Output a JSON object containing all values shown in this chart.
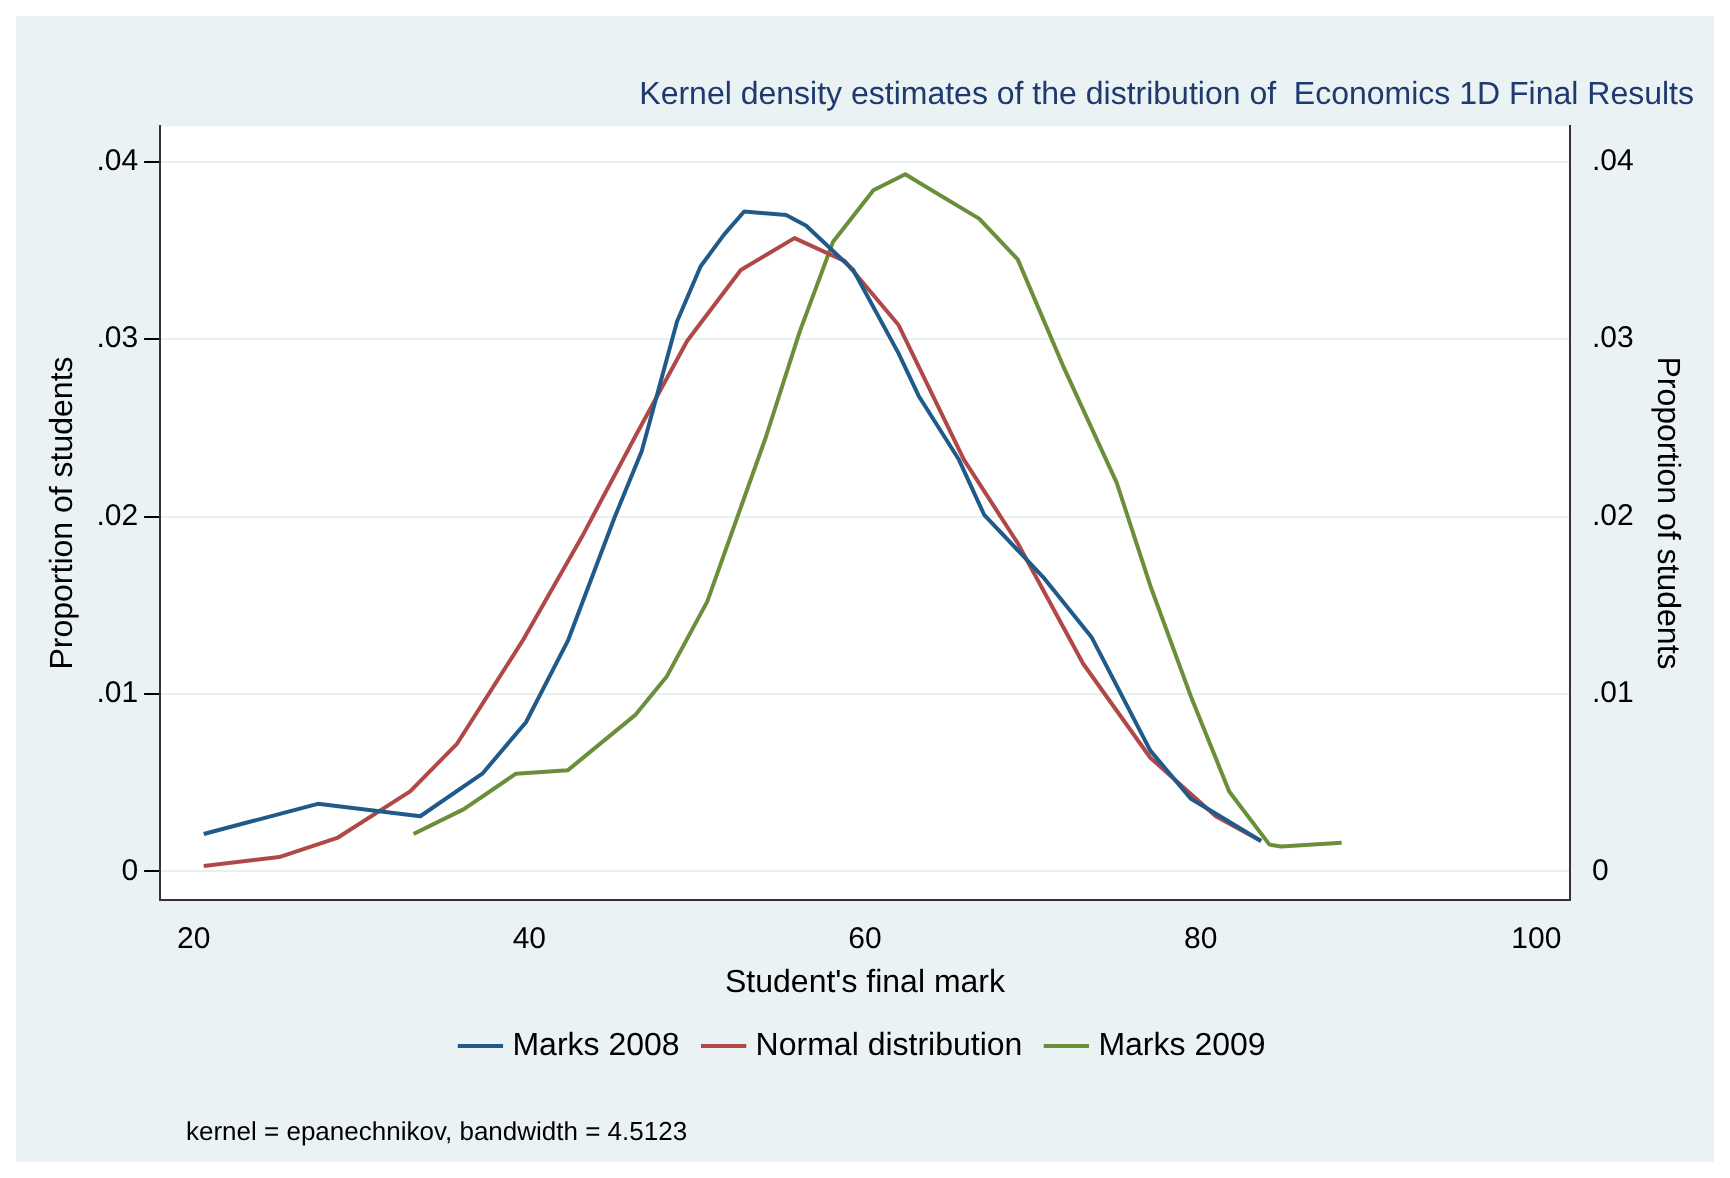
{
  "chart_data": {
    "type": "line",
    "title": "Kernel density estimates of the distribution of  Economics 1D Final Results",
    "xlabel": "Student's final mark",
    "ylabel": "Proportion of students",
    "y2label": "Proportion of students",
    "xlim": [
      18,
      102
    ],
    "xticks": [
      20,
      40,
      60,
      80,
      100
    ],
    "ylim": [
      -0.0016,
      0.042
    ],
    "yticks": [
      {
        "value": 0,
        "label": "0"
      },
      {
        "value": 0.01,
        "label": ".01"
      },
      {
        "value": 0.02,
        "label": ".02"
      },
      {
        "value": 0.03,
        "label": ".03"
      },
      {
        "value": 0.04,
        "label": ".04"
      }
    ],
    "y2lim": [
      -0.0016,
      0.042
    ],
    "y2ticks": [
      {
        "value": 0,
        "label": "0"
      },
      {
        "value": 0.01,
        "label": ".01"
      },
      {
        "value": 0.02,
        "label": ".02"
      },
      {
        "value": 0.03,
        "label": ".03"
      },
      {
        "value": 0.04,
        "label": ".04"
      }
    ],
    "grid": "y",
    "legend": "bottom",
    "marker": "none",
    "line_style": "solid",
    "annotations": [
      "kernel = epanechnikov, bandwidth = 4.5123"
    ],
    "series": [
      {
        "name": "Marks 2008",
        "color": "#1f5a8a",
        "x": [
          20.6,
          27.4,
          33.5,
          37.2,
          39.8,
          42.3,
          45.1,
          46.7,
          48.8,
          50.2,
          51.6,
          52.8,
          55.3,
          56.5,
          59.3,
          62.0,
          63.2,
          65.6,
          67.1,
          70.6,
          73.5,
          77.0,
          79.4,
          83.6
        ],
        "values": [
          0.0021,
          0.0038,
          0.0031,
          0.0055,
          0.0084,
          0.013,
          0.02,
          0.0237,
          0.031,
          0.0341,
          0.0359,
          0.0372,
          0.037,
          0.0364,
          0.0339,
          0.0292,
          0.0268,
          0.0232,
          0.0201,
          0.0166,
          0.0132,
          0.0068,
          0.0041,
          0.0017
        ]
      },
      {
        "name": "Normal distribution",
        "color": "#b04848",
        "x": [
          20.6,
          25.1,
          28.6,
          32.9,
          35.7,
          39.6,
          43.1,
          46.3,
          49.4,
          52.6,
          55.8,
          58.8,
          62.0,
          65.9,
          69.1,
          73.0,
          77.0,
          80.9,
          83.6
        ],
        "values": [
          0.0003,
          0.0008,
          0.0019,
          0.0045,
          0.0072,
          0.013,
          0.0188,
          0.0245,
          0.0299,
          0.0339,
          0.0357,
          0.0344,
          0.0308,
          0.0232,
          0.0185,
          0.0117,
          0.0064,
          0.0031,
          0.0017
        ]
      },
      {
        "name": "Marks 2009",
        "color": "#6a8e3a",
        "x": [
          33.1,
          36.1,
          39.2,
          42.3,
          46.3,
          48.2,
          50.6,
          54.1,
          56.1,
          58.1,
          60.5,
          62.4,
          63.8,
          66.8,
          69.1,
          71.8,
          75.0,
          77.0,
          79.4,
          81.7,
          84.1,
          84.8,
          88.4
        ],
        "values": [
          0.0021,
          0.0035,
          0.0055,
          0.0057,
          0.0088,
          0.011,
          0.0152,
          0.0245,
          0.0304,
          0.0355,
          0.0384,
          0.0393,
          0.0385,
          0.0368,
          0.0345,
          0.0285,
          0.0219,
          0.0161,
          0.0099,
          0.0045,
          0.0015,
          0.0014,
          0.0016
        ]
      }
    ]
  }
}
